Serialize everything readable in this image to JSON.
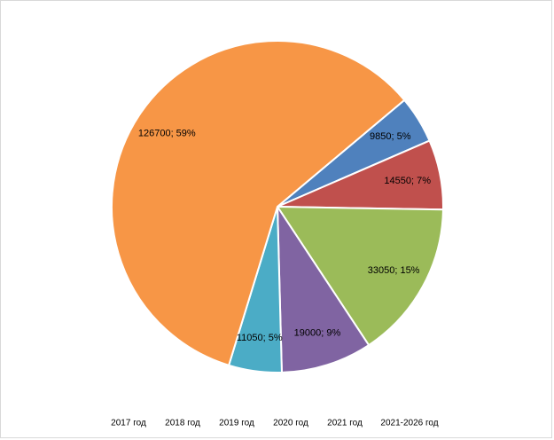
{
  "chart_data": {
    "type": "pie",
    "categories": [
      "2017 год",
      "2018 год",
      "2019 год",
      "2020 год",
      "2021 год",
      "2021-2026 год"
    ],
    "values": [
      9850,
      14550,
      33050,
      19000,
      11050,
      126700
    ],
    "value_labels": [
      "9850; 5%",
      "14550; 7%",
      "33050; 15%",
      "19000; 9%",
      "11050; 5%",
      "126700; 59%"
    ],
    "colors": [
      "#4f81bd",
      "#c0504d",
      "#9bbb59",
      "#8064a2",
      "#4bacc6",
      "#f79646"
    ]
  }
}
